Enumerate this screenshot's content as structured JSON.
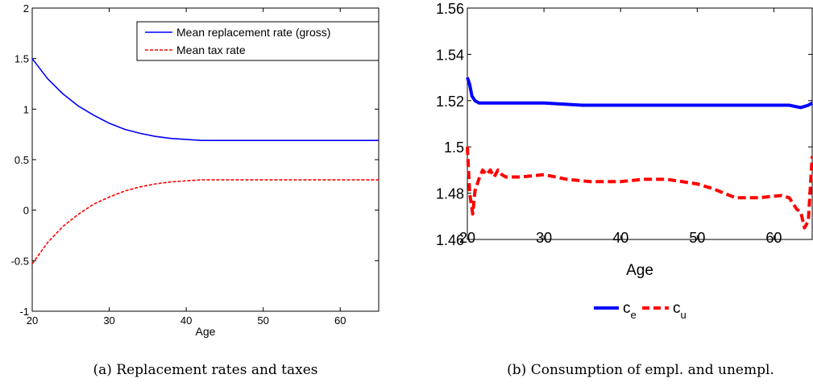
{
  "captions": {
    "a": "(a) Replacement rates and taxes",
    "b": "(b) Consumption of empl. and unempl."
  },
  "chart_data": [
    {
      "type": "line",
      "title": "",
      "xlabel": "Age",
      "ylabel": "",
      "xlim": [
        20,
        65
      ],
      "ylim": [
        -1,
        2
      ],
      "xticks": [
        "20",
        "30",
        "40",
        "50",
        "60"
      ],
      "yticks": [
        "-1",
        "-0.5",
        "0",
        "0.5",
        "1",
        "1.5",
        "2"
      ],
      "legend_position": "top-right",
      "x": [
        20,
        22,
        24,
        26,
        28,
        30,
        32,
        34,
        36,
        38,
        40,
        42,
        44,
        46,
        48,
        50,
        52,
        54,
        56,
        58,
        60,
        62,
        64,
        65
      ],
      "series": [
        {
          "name": "Mean replacement rate (gross)",
          "color": "#0000ff",
          "style": "solid",
          "values": [
            1.5,
            1.3,
            1.15,
            1.03,
            0.94,
            0.86,
            0.8,
            0.76,
            0.73,
            0.71,
            0.7,
            0.69,
            0.69,
            0.69,
            0.69,
            0.69,
            0.69,
            0.69,
            0.69,
            0.69,
            0.69,
            0.69,
            0.69,
            0.69
          ]
        },
        {
          "name": "Mean tax rate",
          "color": "#ff0000",
          "style": "dashed",
          "values": [
            -0.53,
            -0.32,
            -0.16,
            -0.04,
            0.06,
            0.13,
            0.19,
            0.23,
            0.26,
            0.28,
            0.29,
            0.3,
            0.3,
            0.3,
            0.3,
            0.3,
            0.3,
            0.3,
            0.3,
            0.3,
            0.3,
            0.3,
            0.3,
            0.3
          ]
        }
      ]
    },
    {
      "type": "line",
      "title": "",
      "xlabel": "Age",
      "ylabel": "",
      "xlim": [
        20,
        65
      ],
      "ylim": [
        1.46,
        1.56
      ],
      "xticks": [
        "20",
        "30",
        "40",
        "50",
        "60"
      ],
      "yticks": [
        "1.46",
        "1.48",
        "1.5",
        "1.52",
        "1.54",
        "1.56"
      ],
      "legend_position": "bottom-center",
      "series": [
        {
          "name": "c_e",
          "label_main": "c",
          "label_sub": "e",
          "color": "#0000ff",
          "style": "solid",
          "x": [
            20,
            20.3,
            20.6,
            21,
            21.5,
            22,
            25,
            30,
            35,
            40,
            45,
            50,
            55,
            60,
            62,
            63.5,
            64.5,
            65
          ],
          "values": [
            1.53,
            1.527,
            1.522,
            1.52,
            1.519,
            1.519,
            1.519,
            1.519,
            1.518,
            1.518,
            1.518,
            1.518,
            1.518,
            1.518,
            1.518,
            1.517,
            1.518,
            1.519
          ]
        },
        {
          "name": "c_u",
          "label_main": "c",
          "label_sub": "u",
          "color": "#ff0000",
          "style": "dashed",
          "x": [
            20,
            20.3,
            20.7,
            21,
            21.5,
            22,
            22.5,
            23,
            23.5,
            24,
            24.5,
            25,
            27,
            30,
            33,
            36,
            40,
            43,
            46,
            50,
            52,
            55,
            58,
            61,
            62,
            63,
            63.5,
            64,
            64.5,
            65
          ],
          "values": [
            1.5,
            1.48,
            1.471,
            1.481,
            1.486,
            1.49,
            1.488,
            1.49,
            1.487,
            1.49,
            1.488,
            1.487,
            1.487,
            1.488,
            1.486,
            1.485,
            1.485,
            1.486,
            1.486,
            1.484,
            1.482,
            1.478,
            1.478,
            1.479,
            1.478,
            1.473,
            1.472,
            1.465,
            1.468,
            1.496
          ]
        }
      ]
    }
  ]
}
